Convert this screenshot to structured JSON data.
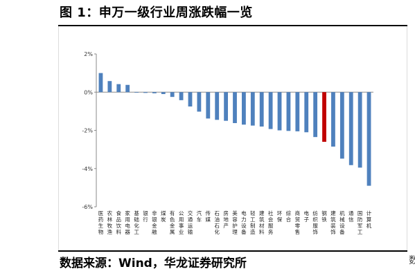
{
  "figure": {
    "title": "图 1：申万一级行业周涨跌幅一览",
    "source": "数据来源：Wind，华龙证券研究所",
    "edge_mark": "数"
  },
  "chart_data": {
    "type": "bar",
    "title": "",
    "xlabel": "",
    "ylabel": "",
    "ylim": [
      -6,
      2
    ],
    "yticks": [
      "2%",
      "0%",
      "-2%",
      "-4%",
      "-6%"
    ],
    "grid": false,
    "legend": "none",
    "bar_color": "#4f81bd",
    "highlight_color": "#c00000",
    "highlight_category": "钢铁",
    "categories": [
      "医药生物",
      "农林牧渔",
      "食品饮料",
      "家用电器",
      "基础化工",
      "银行",
      "非银金融",
      "煤炭",
      "有色金属",
      "公用事业",
      "交通运输",
      "汽车",
      "传媒",
      "石油石化",
      "房地产",
      "美容护理",
      "电力设备",
      "轻工制造",
      "建筑材料",
      "社会服务",
      "环保",
      "综合",
      "商贸零售",
      "电子",
      "纺织服饰",
      "钢铁",
      "建筑装饰",
      "机械设备",
      "通信",
      "国防军工",
      "计算机"
    ],
    "values": [
      1.0,
      0.58,
      0.42,
      0.38,
      -0.02,
      -0.04,
      -0.06,
      -0.1,
      -0.25,
      -0.42,
      -0.75,
      -1.02,
      -1.38,
      -1.45,
      -1.5,
      -1.62,
      -1.7,
      -1.75,
      -1.8,
      -1.93,
      -2.0,
      -2.03,
      -2.05,
      -2.1,
      -2.35,
      -2.6,
      -2.85,
      -3.48,
      -3.82,
      -3.95,
      -4.9
    ]
  }
}
